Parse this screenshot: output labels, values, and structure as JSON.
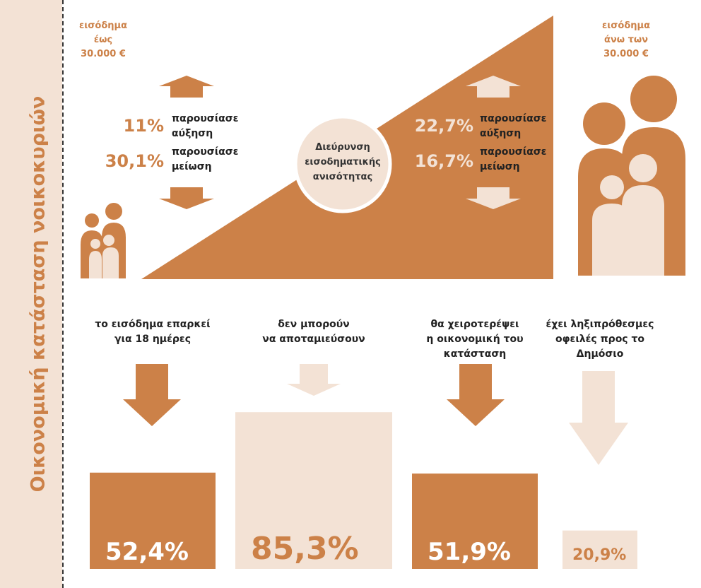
{
  "sidebar": {
    "title": "Οικονομική κατάσταση νοικοκυριών"
  },
  "colors": {
    "dark": "#cc8148",
    "light": "#f3e2d5",
    "text": "#222222"
  },
  "low_income": {
    "label_l1": "εισόδημα",
    "label_l2": "έως",
    "label_l3": "30.000 €",
    "increase_value": "11%",
    "increase_text": "παρουσίασε αύξηση",
    "decrease_value": "30,1%",
    "decrease_text": "παρουσίασε μείωση"
  },
  "high_income": {
    "label_l1": "εισόδημα",
    "label_l2": "άνω των",
    "label_l3": "30.000 €",
    "increase_value": "22,7%",
    "increase_text": "παρουσίασε αύξηση",
    "decrease_value": "16,7%",
    "decrease_text": "παρουσίασε μείωση"
  },
  "center_circle": {
    "l1": "Διεύρυνση",
    "l2": "εισοδηματικής",
    "l3": "ανισότητας"
  },
  "chart_data": {
    "type": "bar",
    "categories": [
      "το εισόδημα επαρκεί για 18 ημέρες",
      "δεν μπορούν να αποταμιεύσουν",
      "θα χειροτερέψει η οικονομική του κατάσταση",
      "έχει ληξιπρόθεσμες οφειλές προς το Δημόσιο"
    ],
    "values": [
      52.4,
      85.3,
      51.9,
      20.9
    ],
    "value_labels": [
      "52,4%",
      "85,3%",
      "51,9%",
      "20,9%"
    ],
    "label_lines": [
      [
        "το εισόδημα επαρκεί",
        "για 18 ημέρες"
      ],
      [
        "δεν μπορούν",
        "να αποταμιεύσουν"
      ],
      [
        "θα χειροτερέψει",
        "η οικονομική του",
        "κατάσταση"
      ],
      [
        "έχει ληξιπρόθεσμες",
        "οφειλές προς το",
        "Δημόσιο"
      ]
    ],
    "colors": [
      "#cc8148",
      "#f3e2d5",
      "#cc8148",
      "#f3e2d5"
    ],
    "value_colors": [
      "#ffffff",
      "#cc8148",
      "#ffffff",
      "#cc8148"
    ]
  }
}
